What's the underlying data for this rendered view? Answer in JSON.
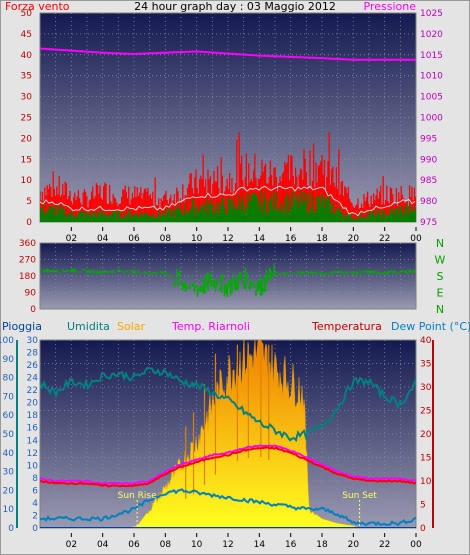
{
  "colors": {
    "wind": "#ff0000",
    "gust": "#ff0000",
    "wind_avg": "#008000",
    "pressure": "#ff00ff",
    "direction": "#00aa00",
    "rain": "#008080",
    "humidity": "#008080",
    "solar": "#ffa500",
    "temp_riarnoli": "#ff00ff",
    "temperature": "#ff0000",
    "dew_point": "#0080c0",
    "sun_marker": "#ffff66"
  },
  "chart_data": [
    {
      "type": "area",
      "title": "24 hour graph day : 03 Maggio 2012",
      "left_label": "Forza vento",
      "right_label": "Pressione",
      "x_ticks": [
        "02",
        "04",
        "06",
        "08",
        "10",
        "12",
        "14",
        "16",
        "18",
        "20",
        "22",
        "00"
      ],
      "y_left": {
        "min": 0,
        "max": 50,
        "ticks": [
          "0",
          "5",
          "10",
          "15",
          "20",
          "25",
          "30",
          "35",
          "40",
          "45",
          "50"
        ]
      },
      "y_right": {
        "min": 975,
        "max": 1025,
        "ticks": [
          "975",
          "980",
          "985",
          "990",
          "995",
          "1000",
          "1005",
          "1010",
          "1015",
          "1020",
          "1025"
        ]
      },
      "series": [
        {
          "key": "gust",
          "x": [
            0,
            1,
            2,
            3,
            4,
            5,
            6,
            7,
            8,
            9,
            10,
            11,
            12,
            13,
            14,
            15,
            16,
            17,
            18,
            19,
            20,
            21,
            22,
            23,
            24
          ],
          "values": [
            8,
            9,
            7,
            6,
            8,
            7,
            7,
            6,
            6,
            8,
            10,
            11,
            11,
            13,
            13,
            12,
            13,
            14,
            15,
            10,
            5,
            6,
            7,
            7,
            7
          ]
        },
        {
          "key": "wind_avg",
          "x": [
            0,
            1,
            2,
            3,
            4,
            5,
            6,
            7,
            8,
            9,
            10,
            11,
            12,
            13,
            14,
            15,
            16,
            17,
            18,
            19,
            20,
            21,
            22,
            23,
            24
          ],
          "values": [
            3,
            3,
            2,
            2,
            2,
            2,
            2,
            2,
            2,
            3,
            4,
            4,
            4,
            5,
            5,
            5,
            5,
            5,
            5,
            3,
            1,
            2,
            2,
            3,
            3
          ]
        },
        {
          "key": "pressure",
          "x": [
            0,
            2,
            4,
            6,
            8,
            10,
            12,
            14,
            16,
            18,
            20,
            22,
            24
          ],
          "values": [
            1016.5,
            1016,
            1015.5,
            1015.2,
            1015.5,
            1015.8,
            1015.3,
            1014.8,
            1014.5,
            1014.2,
            1013.8,
            1013.8,
            1013.8
          ]
        }
      ]
    },
    {
      "type": "scatter",
      "series_name": "Direzione vento",
      "y_left": {
        "min": 0,
        "max": 360,
        "ticks": [
          "0",
          "90",
          "180",
          "270",
          "360"
        ]
      },
      "compass_labels": [
        "N",
        "W",
        "S",
        "E",
        "N"
      ],
      "x": [
        0,
        1,
        2,
        3,
        4,
        5,
        6,
        7,
        8,
        9,
        10,
        11,
        12,
        13,
        14,
        15,
        16,
        17,
        18,
        19,
        20,
        21,
        22,
        23,
        24
      ],
      "values": [
        210,
        205,
        210,
        205,
        200,
        205,
        200,
        195,
        195,
        150,
        110,
        150,
        120,
        170,
        120,
        190,
        190,
        200,
        190,
        200,
        195,
        200,
        195,
        200,
        205
      ]
    },
    {
      "type": "line",
      "labels": {
        "rain": "Pioggia",
        "humidity": "Umidita",
        "solar": "Solar",
        "temp_riarnoli": "Temp. Riarnoli",
        "temperature": "Temperatura",
        "dew_point": "Dew Point (°C)"
      },
      "x_ticks": [
        "02",
        "04",
        "06",
        "08",
        "10",
        "12",
        "14",
        "16",
        "18",
        "20",
        "22",
        "00"
      ],
      "axes": {
        "rain": {
          "min": 0,
          "max": 30,
          "ticks": [
            "0",
            "2",
            "4",
            "6",
            "8",
            "10",
            "12",
            "14",
            "16",
            "18",
            "20",
            "22",
            "24",
            "26",
            "28",
            "30"
          ]
        },
        "humidity": {
          "min": 0,
          "max": 100,
          "ticks": [
            "0",
            "10",
            "20",
            "30",
            "40",
            "50",
            "60",
            "70",
            "80",
            "90",
            "100"
          ]
        },
        "temperature": {
          "min": 0,
          "max": 40,
          "ticks": [
            "0",
            "5",
            "10",
            "15",
            "20",
            "25",
            "30",
            "35",
            "40"
          ]
        }
      },
      "sun_rise": {
        "label": "Sun Rise",
        "x": 6.2
      },
      "sun_set": {
        "label": "Sun Set",
        "x": 20.4
      },
      "series": [
        {
          "key": "humidity",
          "axis": "humidity",
          "x": [
            0,
            1,
            2,
            3,
            4,
            5,
            6,
            7,
            8,
            9,
            10,
            11,
            12,
            13,
            14,
            15,
            16,
            17,
            18,
            19,
            20,
            21,
            22,
            23,
            24
          ],
          "values": [
            77,
            72,
            78,
            76,
            81,
            82,
            80,
            84,
            83,
            78,
            76,
            72,
            68,
            62,
            56,
            52,
            48,
            50,
            54,
            64,
            78,
            78,
            70,
            66,
            77
          ]
        },
        {
          "key": "solar",
          "axis": "temperature",
          "x": [
            0,
            5.5,
            6.2,
            7,
            8,
            9,
            10,
            11,
            12,
            13,
            14,
            15,
            16,
            16.8,
            17.2,
            18,
            19,
            20,
            20.4,
            21,
            24
          ],
          "values": [
            0,
            0,
            0.5,
            4,
            9,
            14,
            19,
            27,
            34,
            37,
            38,
            35,
            32,
            30,
            4,
            2,
            1,
            0.5,
            0,
            0,
            0
          ]
        },
        {
          "key": "temp_riarnoli",
          "axis": "temperature",
          "x": [
            0,
            1,
            2,
            3,
            4,
            5,
            6,
            7,
            8,
            9,
            10,
            11,
            12,
            13,
            14,
            15,
            16,
            17,
            18,
            19,
            20,
            21,
            22,
            23,
            24
          ],
          "values": [
            10.5,
            10,
            10,
            10,
            9.5,
            9.5,
            9.5,
            10,
            12,
            13.5,
            14.5,
            15.5,
            16,
            17,
            17.5,
            17.5,
            16.5,
            15,
            13.5,
            12,
            11,
            10.5,
            10.5,
            10.5,
            10
          ]
        },
        {
          "key": "temperature",
          "axis": "temperature",
          "x": [
            0,
            1,
            2,
            3,
            4,
            5,
            6,
            7,
            8,
            9,
            10,
            11,
            12,
            13,
            14,
            15,
            16,
            17,
            18,
            19,
            20,
            21,
            22,
            23,
            24
          ],
          "values": [
            10,
            9.5,
            9.5,
            9.5,
            9,
            9,
            9,
            9.5,
            11.5,
            13,
            14,
            15,
            15.5,
            16.5,
            17,
            17,
            16,
            14.5,
            13,
            11.5,
            10.5,
            10,
            10,
            10,
            9.5
          ]
        },
        {
          "key": "dew_point",
          "axis": "temperature",
          "x": [
            0,
            1,
            2,
            3,
            4,
            5,
            6,
            7,
            8,
            9,
            10,
            11,
            12,
            13,
            14,
            15,
            16,
            17,
            18,
            19,
            20,
            21,
            22,
            23,
            24
          ],
          "values": [
            2,
            2,
            2,
            2,
            2,
            3,
            4,
            6,
            7.5,
            8,
            7.5,
            7,
            6.5,
            6,
            5.5,
            5,
            4.5,
            4,
            4,
            3,
            1,
            1,
            1,
            1,
            2
          ]
        },
        {
          "key": "rain",
          "axis": "rain",
          "x": [
            0,
            24
          ],
          "values": [
            0,
            0
          ]
        }
      ]
    }
  ]
}
